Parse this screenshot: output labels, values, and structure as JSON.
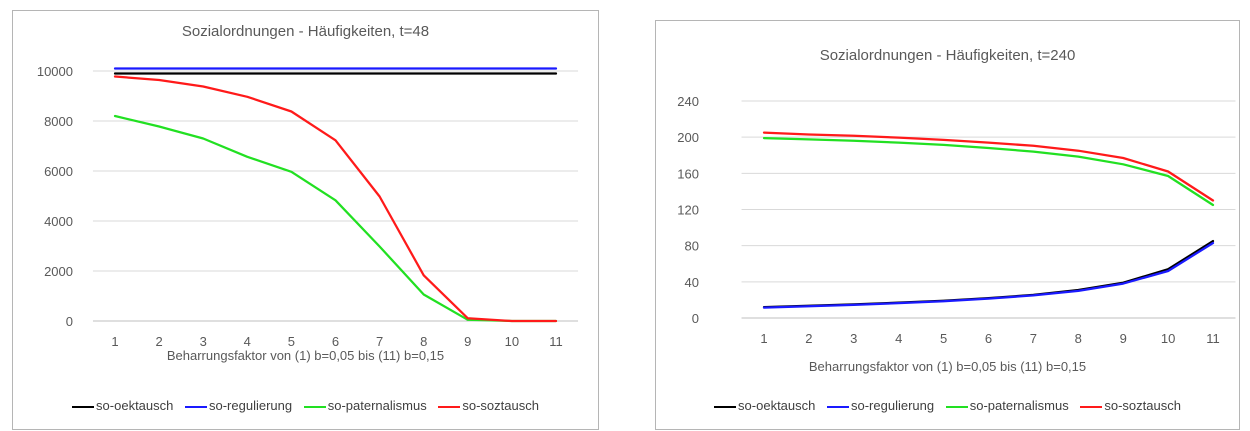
{
  "colors": {
    "so-oektausch": "#000000",
    "so-regulierung": "#1a1aff",
    "so-paternalismus": "#22e022",
    "so-soztausch": "#ff1a1a",
    "grid": "#d9d9d9",
    "axis": "#bfbfbf"
  },
  "chart_data": [
    {
      "type": "line",
      "title": "Sozialordnungen - Häufigkeiten, t=48",
      "xlabel": "Beharrungsfaktor von (1)  b=0,05 bis (11) b=0,15",
      "ylabel": "",
      "categories": [
        "1",
        "2",
        "3",
        "4",
        "5",
        "6",
        "7",
        "8",
        "9",
        "10",
        "11"
      ],
      "ylim": [
        0,
        10000
      ],
      "yticks": [
        "0",
        "2000",
        "4000",
        "6000",
        "8000",
        "10000"
      ],
      "grid": true,
      "legend_position": "bottom",
      "series": [
        {
          "name": "so-oektausch",
          "color": "#000000",
          "values": [
            9900,
            9900,
            9900,
            9900,
            9900,
            9900,
            9900,
            9900,
            9900,
            9900,
            9900
          ]
        },
        {
          "name": "so-regulierung",
          "color": "#1a1aff",
          "values": [
            10100,
            10100,
            10100,
            10100,
            10100,
            10100,
            10100,
            10100,
            10100,
            10100,
            10100
          ]
        },
        {
          "name": "so-paternalismus",
          "color": "#22e022",
          "values": [
            8200,
            7780,
            7300,
            6570,
            5970,
            4830,
            2980,
            1060,
            50,
            0,
            0
          ]
        },
        {
          "name": "so-soztausch",
          "color": "#ff1a1a",
          "values": [
            9780,
            9640,
            9380,
            8970,
            8380,
            7230,
            4980,
            1830,
            110,
            0,
            0
          ]
        }
      ]
    },
    {
      "type": "line",
      "title": "Sozialordnungen - Häufigkeiten, t=240",
      "xlabel": "Beharrungsfaktor von (1)  b=0,05 bis (11) b=0,15",
      "ylabel": "",
      "categories": [
        "1",
        "2",
        "3",
        "4",
        "5",
        "6",
        "7",
        "8",
        "9",
        "10",
        "11"
      ],
      "ylim": [
        0,
        240
      ],
      "yticks": [
        "0",
        "40",
        "80",
        "120",
        "160",
        "200",
        "240"
      ],
      "grid": true,
      "legend_position": "bottom",
      "series": [
        {
          "name": "so-oektausch",
          "color": "#000000",
          "values": [
            12,
            13.5,
            15,
            17,
            19,
            22,
            25.5,
            31,
            39,
            54,
            85
          ]
        },
        {
          "name": "so-regulierung",
          "color": "#1a1aff",
          "values": [
            11.5,
            13,
            14.5,
            16.5,
            18.5,
            21.5,
            25,
            30,
            38,
            52,
            83
          ]
        },
        {
          "name": "so-paternalismus",
          "color": "#22e022",
          "values": [
            199,
            197.5,
            196,
            194,
            191.5,
            188,
            184,
            178.5,
            170,
            157,
            125
          ]
        },
        {
          "name": "so-soztausch",
          "color": "#ff1a1a",
          "values": [
            205,
            203,
            201.5,
            199.5,
            197,
            194,
            190.5,
            185,
            177,
            162,
            130
          ]
        }
      ]
    }
  ]
}
